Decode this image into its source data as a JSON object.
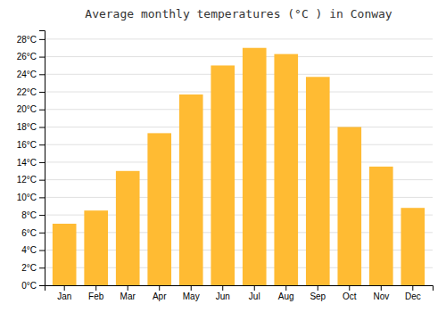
{
  "chart_data": {
    "type": "bar",
    "title": "Average monthly temperatures (°C ) in Conway",
    "categories": [
      "Jan",
      "Feb",
      "Mar",
      "Apr",
      "May",
      "Jun",
      "Jul",
      "Aug",
      "Sep",
      "Oct",
      "Nov",
      "Dec"
    ],
    "values": [
      7.0,
      8.5,
      13.0,
      17.3,
      21.7,
      25.0,
      27.0,
      26.3,
      23.7,
      18.0,
      13.5,
      8.8
    ],
    "color": "#FFBB33",
    "ylim": [
      0,
      29
    ],
    "yticks": [
      {
        "value": 0,
        "label": "0°C"
      },
      {
        "value": 2,
        "label": "2°C"
      },
      {
        "value": 4,
        "label": "4°C"
      },
      {
        "value": 6,
        "label": "6°C"
      },
      {
        "value": 8,
        "label": "8°C"
      },
      {
        "value": 10,
        "label": "10°C"
      },
      {
        "value": 12,
        "label": "12°C"
      },
      {
        "value": 14,
        "label": "14°C"
      },
      {
        "value": 16,
        "label": "16°C"
      },
      {
        "value": 18,
        "label": "18°C"
      },
      {
        "value": 20,
        "label": "20°C"
      },
      {
        "value": 22,
        "label": "22°C"
      },
      {
        "value": 24,
        "label": "24°C"
      },
      {
        "value": 26,
        "label": "26°C"
      },
      {
        "value": 28,
        "label": "28°C"
      }
    ],
    "grid": true
  }
}
